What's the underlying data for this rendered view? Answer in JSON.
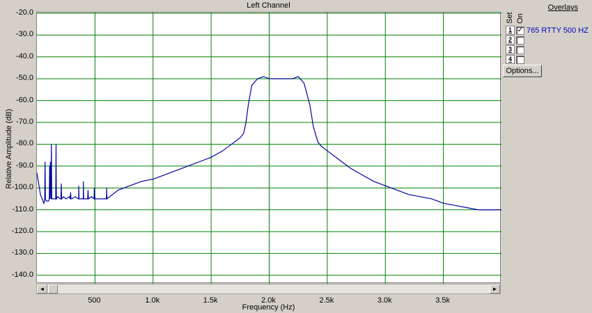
{
  "chart_title": "Left Channel",
  "chart_data": {
    "type": "line",
    "title": "Left Channel",
    "xlabel": "Frequency (Hz)",
    "ylabel": "Relative Amplitude (dB)",
    "xlim": [
      0,
      4000
    ],
    "ylim": [
      -145,
      -20
    ],
    "x_ticks": [
      500,
      1000,
      1500,
      2000,
      2500,
      3000,
      3500
    ],
    "x_tick_labels": [
      "500",
      "1.0k",
      "1.5k",
      "2.0k",
      "2.5k",
      "3.0k",
      "3.5k"
    ],
    "y_ticks": [
      -20,
      -30,
      -40,
      -50,
      -60,
      -70,
      -80,
      -90,
      -100,
      -110,
      -120,
      -130,
      -140
    ],
    "y_tick_labels": [
      "-20.0",
      "-30.0",
      "-40.0",
      "-50.0",
      "-60.0",
      "-70.0",
      "-80.0",
      "-90.0",
      "-100.0",
      "-110.0",
      "-120.0",
      "-130.0",
      "-140.0"
    ],
    "grid": true,
    "grid_color": "#008000",
    "series": [
      {
        "name": "765 RTTY 500 HZ",
        "color": "#0000a0",
        "x": [
          0,
          30,
          60,
          80,
          100,
          115,
          130,
          150,
          165,
          180,
          200,
          230,
          250,
          280,
          300,
          330,
          360,
          400,
          430,
          470,
          500,
          600,
          700,
          800,
          900,
          1000,
          1100,
          1200,
          1300,
          1400,
          1500,
          1600,
          1700,
          1750,
          1780,
          1800,
          1820,
          1850,
          1900,
          1950,
          2000,
          2050,
          2100,
          2150,
          2200,
          2250,
          2300,
          2350,
          2380,
          2420,
          2450,
          2500,
          2600,
          2700,
          2800,
          2900,
          3000,
          3100,
          3200,
          3300,
          3400,
          3500,
          3600,
          3700,
          3800,
          3900,
          4000
        ],
        "y": [
          -93,
          -103,
          -107,
          -106,
          -106,
          -88,
          -105,
          -105,
          -80,
          -104,
          -105,
          -104,
          -105,
          -104,
          -105,
          -104,
          -105,
          -104,
          -105,
          -104,
          -105,
          -103,
          -101,
          -99,
          -97,
          -96,
          -94,
          -92,
          -90,
          -88,
          -86,
          -83,
          -79,
          -77,
          -75,
          -70,
          -62,
          -53,
          -50,
          -49,
          -50,
          -50,
          -50,
          -50,
          -50,
          -49,
          -52,
          -62,
          -72,
          -79,
          -81,
          -83,
          -87,
          -91,
          -94,
          -97,
          -99,
          -101,
          -103,
          -104,
          -105,
          -107,
          -108,
          -109,
          -110,
          -110,
          -110
        ]
      }
    ],
    "spikes": [
      {
        "x": 70,
        "y": -88
      },
      {
        "x": 110,
        "y": -90
      },
      {
        "x": 125,
        "y": -80
      },
      {
        "x": 165,
        "y": -87
      },
      {
        "x": 210,
        "y": -98
      },
      {
        "x": 290,
        "y": -102
      },
      {
        "x": 360,
        "y": -99
      },
      {
        "x": 400,
        "y": -97
      },
      {
        "x": 440,
        "y": -101
      },
      {
        "x": 495,
        "y": -100
      },
      {
        "x": 600,
        "y": -100
      }
    ]
  },
  "overlays": {
    "title": "Overlays",
    "set_header": "Set",
    "on_header": "On",
    "sets": [
      {
        "num": "1",
        "checked": true,
        "name": "765 RTTY 500 HZ"
      },
      {
        "num": "2",
        "checked": false,
        "name": ""
      },
      {
        "num": "3",
        "checked": false,
        "name": ""
      },
      {
        "num": "4",
        "checked": false,
        "name": ""
      }
    ],
    "options_label": "Options..."
  },
  "scrollbar": {
    "left_arrow": "◄",
    "right_arrow": "►"
  }
}
